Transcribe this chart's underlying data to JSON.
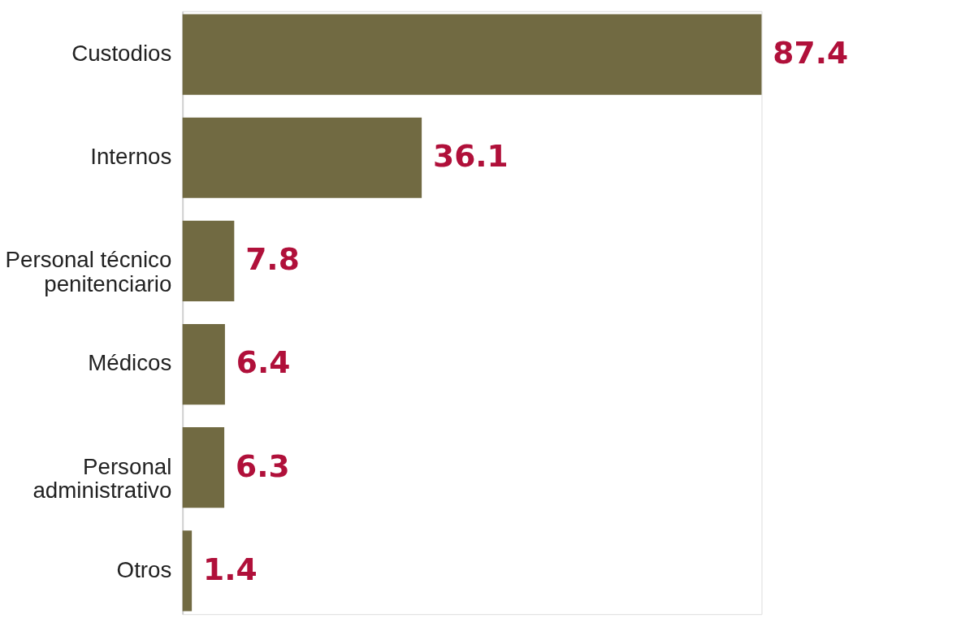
{
  "chart_data": {
    "type": "bar",
    "orientation": "horizontal",
    "categories": [
      "Custodios",
      "Internos",
      "Personal técnico\npenitenciario",
      "Médicos",
      "Personal\nadministrativo",
      "Otros"
    ],
    "values": [
      87.4,
      36.1,
      7.8,
      6.4,
      6.3,
      1.4
    ],
    "color": "#716a42",
    "data_labels": true
  }
}
